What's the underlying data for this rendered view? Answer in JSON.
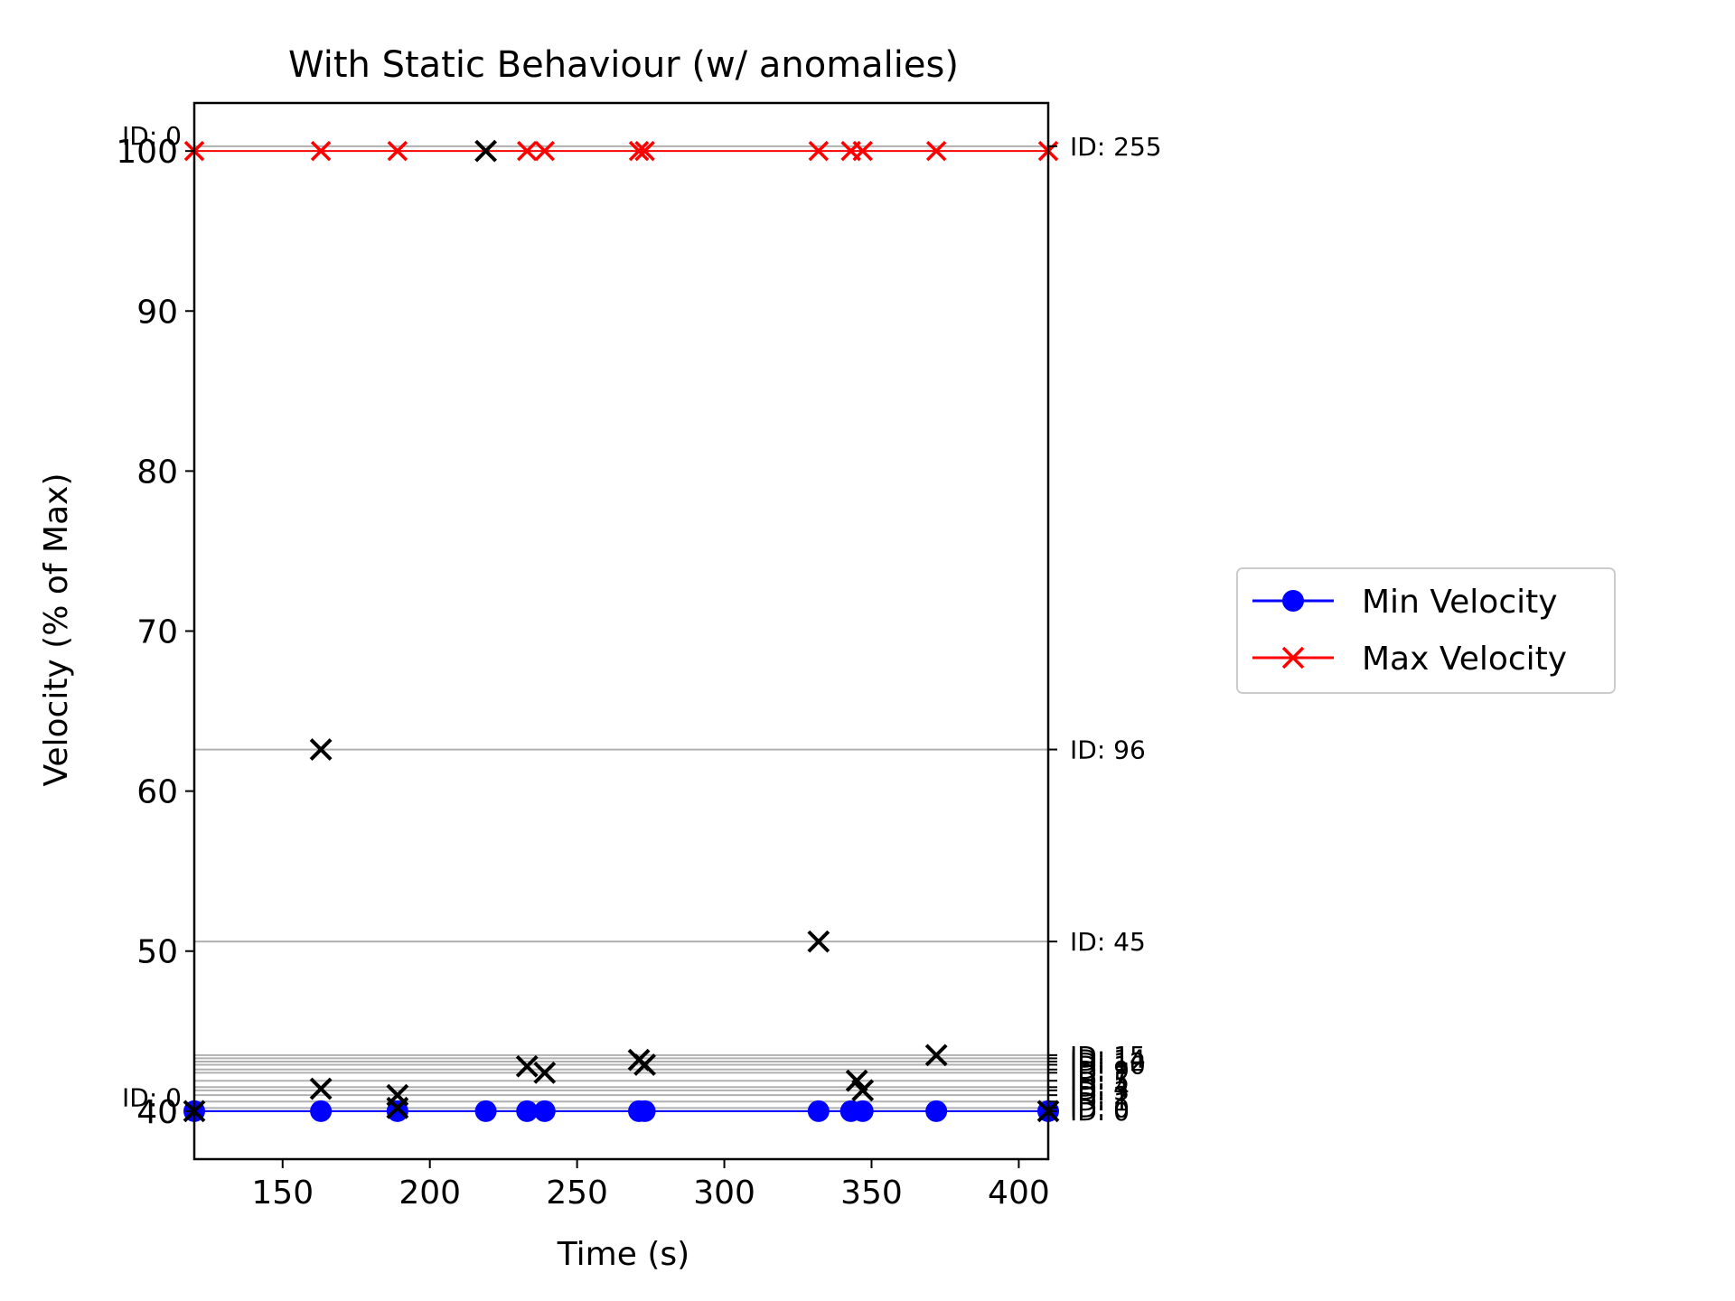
{
  "chart_data": {
    "type": "line",
    "title": "With Static Behaviour (w/ anomalies)",
    "xlabel": "Time (s)",
    "ylabel": "Velocity (% of Max)",
    "xlim": [
      120,
      410
    ],
    "ylim": [
      37,
      103
    ],
    "xticks": [
      150,
      200,
      250,
      300,
      350,
      400
    ],
    "yticks": [
      40,
      50,
      60,
      70,
      80,
      90,
      100
    ],
    "legend_position": "right, outside plot",
    "grid": false,
    "colors": {
      "min": "#0000ff",
      "max": "#ff0000",
      "anomaly": "#000000",
      "id_line": "#b0b0b0"
    },
    "series": [
      {
        "name": "Min Velocity",
        "marker": "circle",
        "color": "#0000ff",
        "x": [
          120,
          163,
          189,
          219,
          233,
          239,
          271,
          273,
          332,
          343,
          347,
          372,
          410
        ],
        "y": [
          40,
          40,
          40,
          40,
          40,
          40,
          40,
          40,
          40,
          40,
          40,
          40,
          40
        ]
      },
      {
        "name": "Max Velocity",
        "marker": "x",
        "color": "#ff0000",
        "x": [
          120,
          163,
          189,
          219,
          233,
          239,
          271,
          273,
          332,
          343,
          347,
          372,
          410
        ],
        "y": [
          100,
          100,
          100,
          100,
          100,
          100,
          100,
          100,
          100,
          100,
          100,
          100,
          100
        ]
      }
    ],
    "anomalies": {
      "marker": "x",
      "color": "#000000",
      "points": [
        {
          "x": 120,
          "y": 40
        },
        {
          "x": 163,
          "y": 62.6
        },
        {
          "x": 163,
          "y": 41.4
        },
        {
          "x": 189,
          "y": 41.0
        },
        {
          "x": 189,
          "y": 40.2
        },
        {
          "x": 219,
          "y": 100
        },
        {
          "x": 233,
          "y": 42.8
        },
        {
          "x": 239,
          "y": 42.4
        },
        {
          "x": 271,
          "y": 43.2
        },
        {
          "x": 273,
          "y": 42.9
        },
        {
          "x": 332,
          "y": 50.6
        },
        {
          "x": 345,
          "y": 41.9
        },
        {
          "x": 347,
          "y": 41.3
        },
        {
          "x": 372,
          "y": 43.5
        },
        {
          "x": 410,
          "y": 40
        }
      ]
    },
    "id_lines": [
      {
        "label": "ID: 255",
        "y": 100.3
      },
      {
        "label": "ID: 96",
        "y": 62.6
      },
      {
        "label": "ID: 45",
        "y": 50.6
      },
      {
        "label": "ID: 15",
        "y": 43.5
      },
      {
        "label": "ID: 14",
        "y": 43.3
      },
      {
        "label": "ID: 12",
        "y": 43.1
      },
      {
        "label": "ID: 10",
        "y": 42.9
      },
      {
        "label": "ID: 9",
        "y": 42.6
      },
      {
        "label": "ID: 7",
        "y": 42.4
      },
      {
        "label": "ID: 5",
        "y": 41.9
      },
      {
        "label": "ID: 4",
        "y": 41.5
      },
      {
        "label": "ID: 3",
        "y": 41.3
      },
      {
        "label": "ID: 2",
        "y": 41.0
      },
      {
        "label": "ID: 1",
        "y": 40.6
      },
      {
        "label": "ID: 0",
        "y": 40.2
      },
      {
        "label": "ID: 0",
        "y": 40.0
      }
    ],
    "left_labels": [
      {
        "label": "ID: 0",
        "y": 100.3
      },
      {
        "label": "ID: 0",
        "y": 40.2
      }
    ],
    "legend": [
      "Min Velocity",
      "Max Velocity"
    ]
  }
}
